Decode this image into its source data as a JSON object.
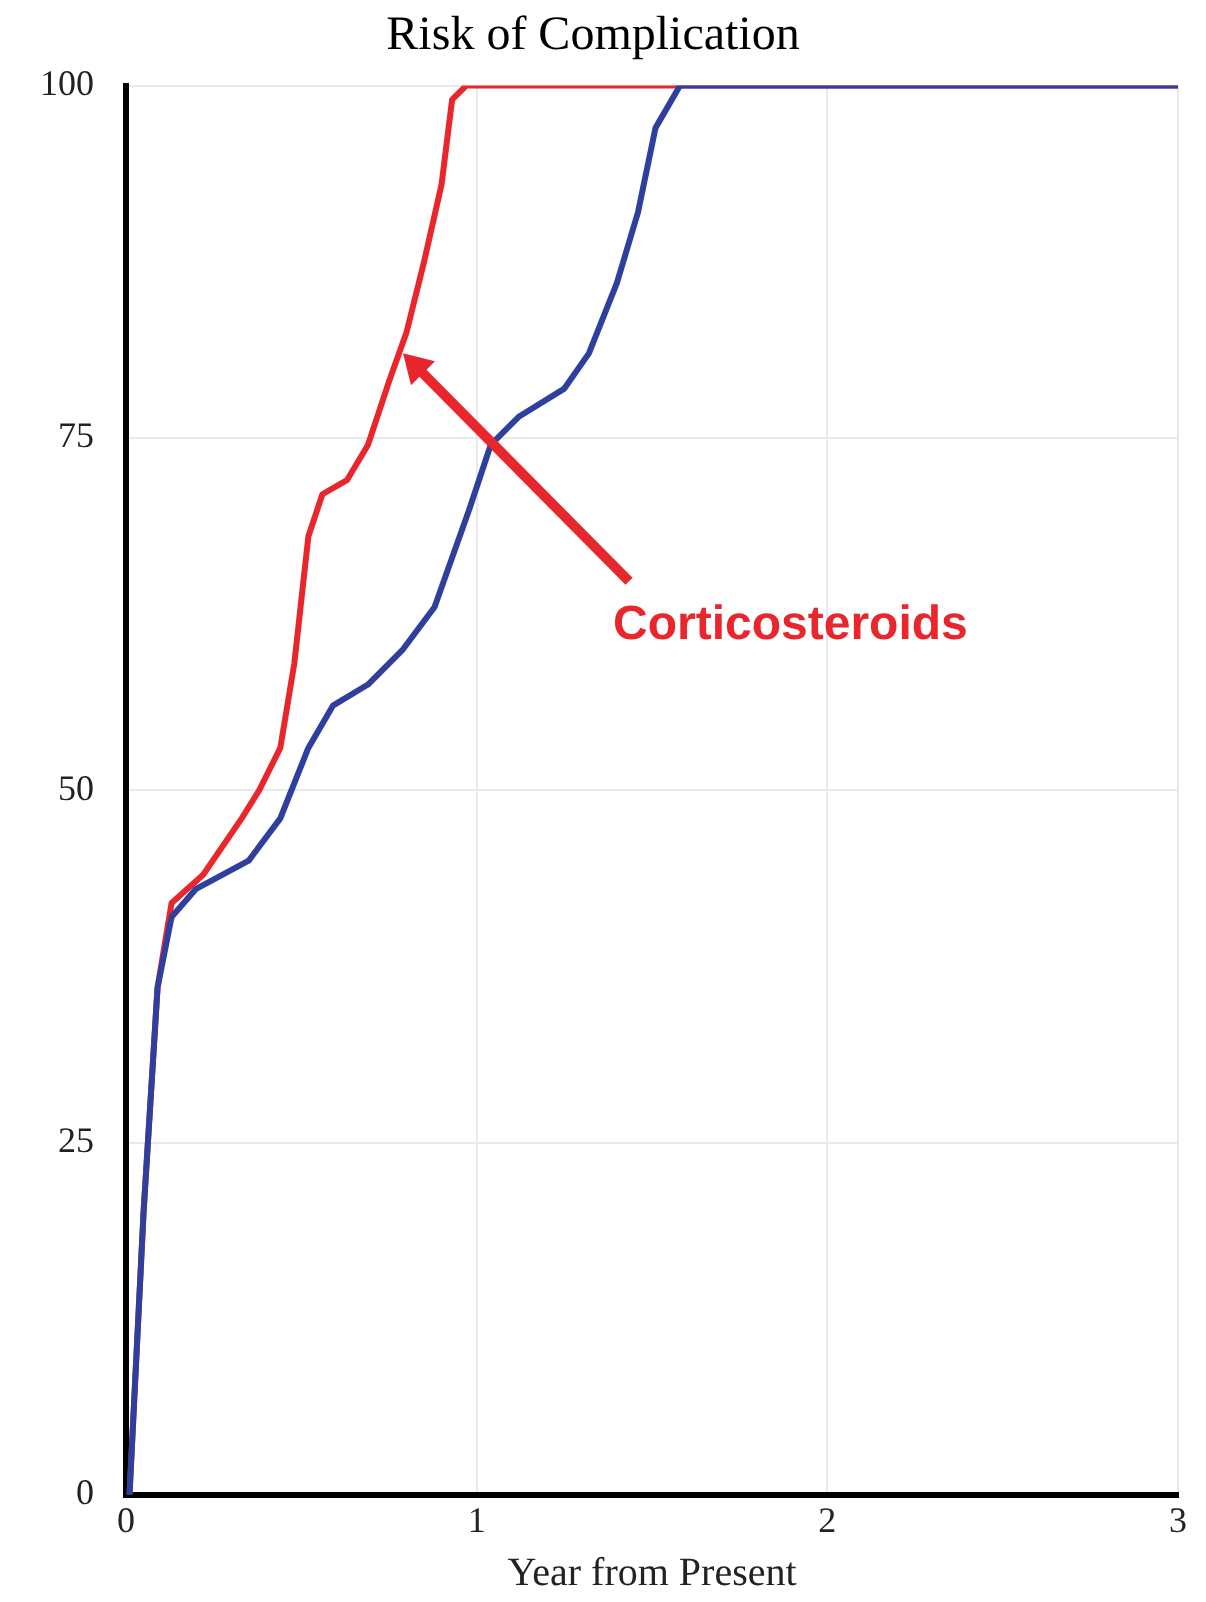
{
  "chart_data": {
    "type": "line",
    "title": "Risk of Complication",
    "xlabel": "Year from Present",
    "xlim": [
      0,
      3
    ],
    "xticks": [
      0,
      1,
      2,
      3
    ],
    "ylim": [
      0,
      100
    ],
    "yticks": [
      0,
      25,
      50,
      75,
      100
    ],
    "grid": true,
    "legend": false,
    "marker": "none",
    "line_style": "solid",
    "annotations": [
      {
        "text": "Corticosteroids",
        "x": 0.79,
        "y": 81
      }
    ],
    "series": [
      {
        "color": "#2e3f9e",
        "x": [
          0.01,
          0.05,
          0.09,
          0.13,
          0.2,
          0.35,
          0.44,
          0.52,
          0.59,
          0.69,
          0.79,
          0.88,
          0.98,
          1.04,
          1.12,
          1.25,
          1.32,
          1.4,
          1.46,
          1.51,
          1.58,
          3
        ],
        "values": [
          0,
          20,
          36,
          41,
          43,
          45,
          48,
          53,
          56,
          57.5,
          60,
          63,
          70,
          74.5,
          76.5,
          78.5,
          81,
          86,
          91,
          97,
          100,
          100
        ]
      },
      {
        "color": "#e8262c",
        "x": [
          0.01,
          0.05,
          0.09,
          0.13,
          0.22,
          0.33,
          0.38,
          0.44,
          0.48,
          0.52,
          0.56,
          0.63,
          0.69,
          0.75,
          0.8,
          0.85,
          0.9,
          0.93,
          0.97,
          3
        ],
        "values": [
          0,
          20,
          36,
          42,
          44,
          48,
          50,
          53,
          59,
          68,
          71,
          72,
          74.5,
          79,
          82.5,
          87.5,
          93,
          99,
          100,
          100
        ]
      }
    ]
  }
}
